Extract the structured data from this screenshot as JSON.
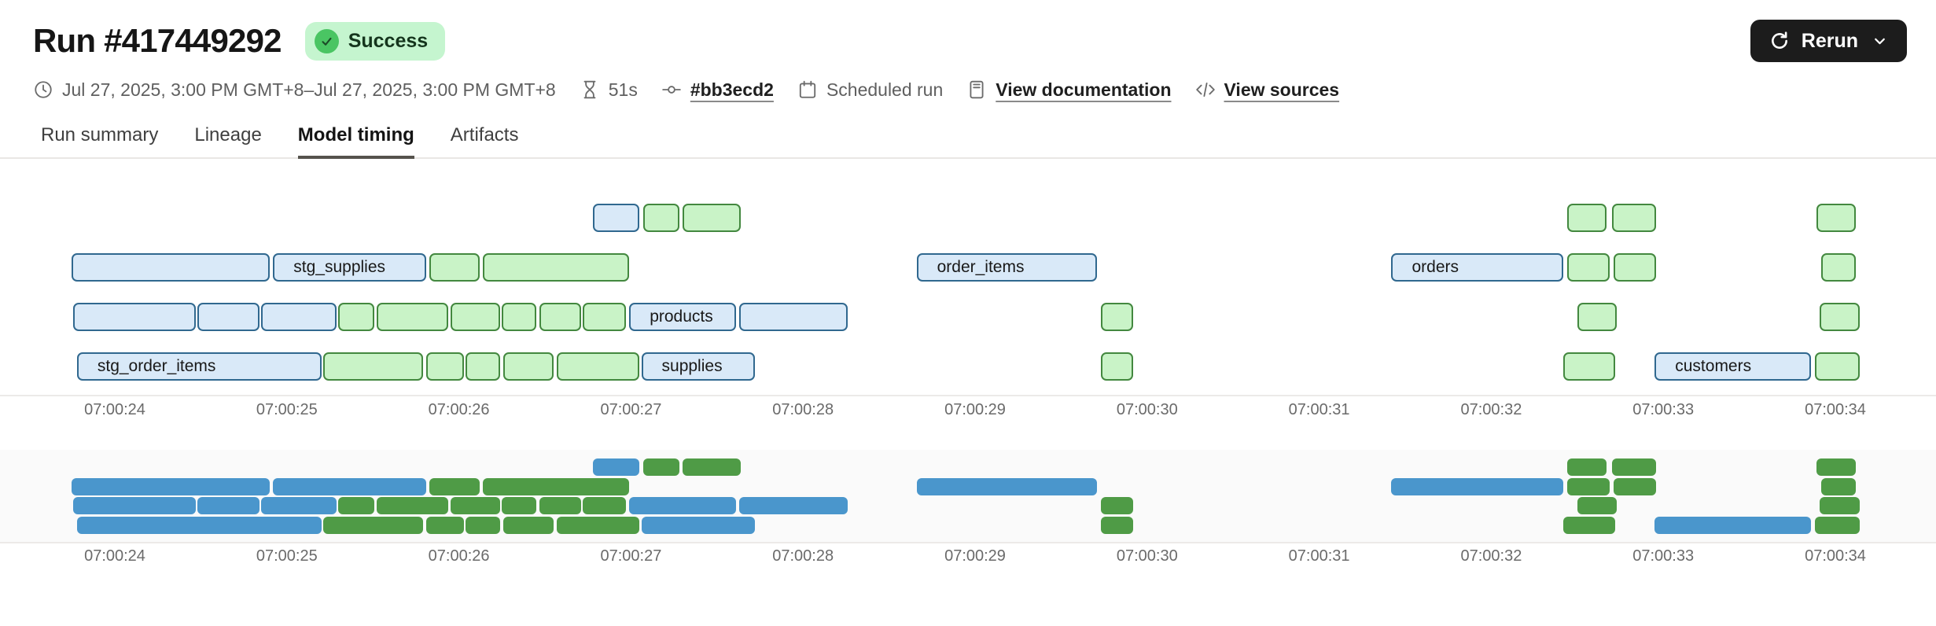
{
  "header": {
    "title": "Run #417449292",
    "status": "Success",
    "rerun_label": "Rerun",
    "meta": {
      "date_range": "Jul 27, 2025, 3:00 PM GMT+8–Jul 27, 2025, 3:00 PM GMT+8",
      "duration": "51s",
      "commit": "#bb3ecd2",
      "trigger": "Scheduled run",
      "view_documentation": "View documentation",
      "view_sources": "View sources"
    }
  },
  "tabs": [
    {
      "label": "Run summary",
      "active": false
    },
    {
      "label": "Lineage",
      "active": false
    },
    {
      "label": "Model timing",
      "active": true
    },
    {
      "label": "Artifacts",
      "active": false
    }
  ],
  "chart_data": {
    "type": "gantt",
    "title": "Model timing",
    "x_axis": {
      "tick_labels": [
        "07:00:24",
        "07:00:25",
        "07:00:26",
        "07:00:27",
        "07:00:28",
        "07:00:29",
        "07:00:30",
        "07:00:31",
        "07:00:32",
        "07:00:33",
        "07:00:34"
      ],
      "tick_seconds": [
        24,
        25,
        26,
        27,
        28,
        29,
        30,
        31,
        32,
        33,
        34
      ],
      "domain_seconds": [
        23.7,
        34.2
      ]
    },
    "colors": {
      "detail_blue_fill": "#d9e9f8",
      "detail_blue_border": "#30688f",
      "detail_green_fill": "#c9f3c7",
      "detail_green_border": "#43883f",
      "mini_blue": "#4a96cc",
      "mini_green": "#4f9b46"
    },
    "rows": [
      {
        "bars": [
          {
            "start": 26.78,
            "end": 27.05,
            "color": "blue"
          },
          {
            "start": 27.07,
            "end": 27.28,
            "color": "green"
          },
          {
            "start": 27.3,
            "end": 27.64,
            "color": "green"
          },
          {
            "start": 32.44,
            "end": 32.67,
            "color": "green"
          },
          {
            "start": 32.7,
            "end": 32.96,
            "color": "green"
          },
          {
            "start": 33.89,
            "end": 34.12,
            "color": "green"
          }
        ]
      },
      {
        "bars": [
          {
            "start": 23.75,
            "end": 24.9,
            "color": "blue"
          },
          {
            "start": 24.92,
            "end": 25.81,
            "color": "blue",
            "label": "stg_supplies"
          },
          {
            "start": 25.83,
            "end": 26.12,
            "color": "green"
          },
          {
            "start": 26.14,
            "end": 26.99,
            "color": "green"
          },
          {
            "start": 28.66,
            "end": 29.71,
            "color": "blue",
            "label": "order_items"
          },
          {
            "start": 31.42,
            "end": 32.42,
            "color": "blue",
            "label": "orders"
          },
          {
            "start": 32.44,
            "end": 32.69,
            "color": "green"
          },
          {
            "start": 32.71,
            "end": 32.96,
            "color": "green"
          },
          {
            "start": 33.92,
            "end": 34.12,
            "color": "green"
          }
        ]
      },
      {
        "bars": [
          {
            "start": 23.76,
            "end": 24.47,
            "color": "blue"
          },
          {
            "start": 24.48,
            "end": 24.84,
            "color": "blue"
          },
          {
            "start": 24.85,
            "end": 25.29,
            "color": "blue"
          },
          {
            "start": 25.3,
            "end": 25.51,
            "color": "green"
          },
          {
            "start": 25.52,
            "end": 25.94,
            "color": "green"
          },
          {
            "start": 25.95,
            "end": 26.24,
            "color": "green"
          },
          {
            "start": 26.25,
            "end": 26.45,
            "color": "green"
          },
          {
            "start": 26.47,
            "end": 26.71,
            "color": "green"
          },
          {
            "start": 26.72,
            "end": 26.97,
            "color": "green"
          },
          {
            "start": 26.99,
            "end": 27.61,
            "color": "blue",
            "label": "products"
          },
          {
            "start": 27.63,
            "end": 28.26,
            "color": "blue"
          },
          {
            "start": 29.73,
            "end": 29.92,
            "color": "green"
          },
          {
            "start": 32.5,
            "end": 32.73,
            "color": "green"
          },
          {
            "start": 33.91,
            "end": 34.14,
            "color": "green"
          }
        ]
      },
      {
        "bars": [
          {
            "start": 23.78,
            "end": 25.2,
            "color": "blue",
            "label": "stg_order_items"
          },
          {
            "start": 25.21,
            "end": 25.79,
            "color": "green"
          },
          {
            "start": 25.81,
            "end": 26.03,
            "color": "green"
          },
          {
            "start": 26.04,
            "end": 26.24,
            "color": "green"
          },
          {
            "start": 26.26,
            "end": 26.55,
            "color": "green"
          },
          {
            "start": 26.57,
            "end": 27.05,
            "color": "green"
          },
          {
            "start": 27.06,
            "end": 27.72,
            "color": "blue",
            "label": "supplies"
          },
          {
            "start": 29.73,
            "end": 29.92,
            "color": "green"
          },
          {
            "start": 32.42,
            "end": 32.72,
            "color": "green"
          },
          {
            "start": 32.95,
            "end": 33.86,
            "color": "blue",
            "label": "customers"
          },
          {
            "start": 33.88,
            "end": 34.14,
            "color": "green"
          }
        ]
      }
    ]
  }
}
